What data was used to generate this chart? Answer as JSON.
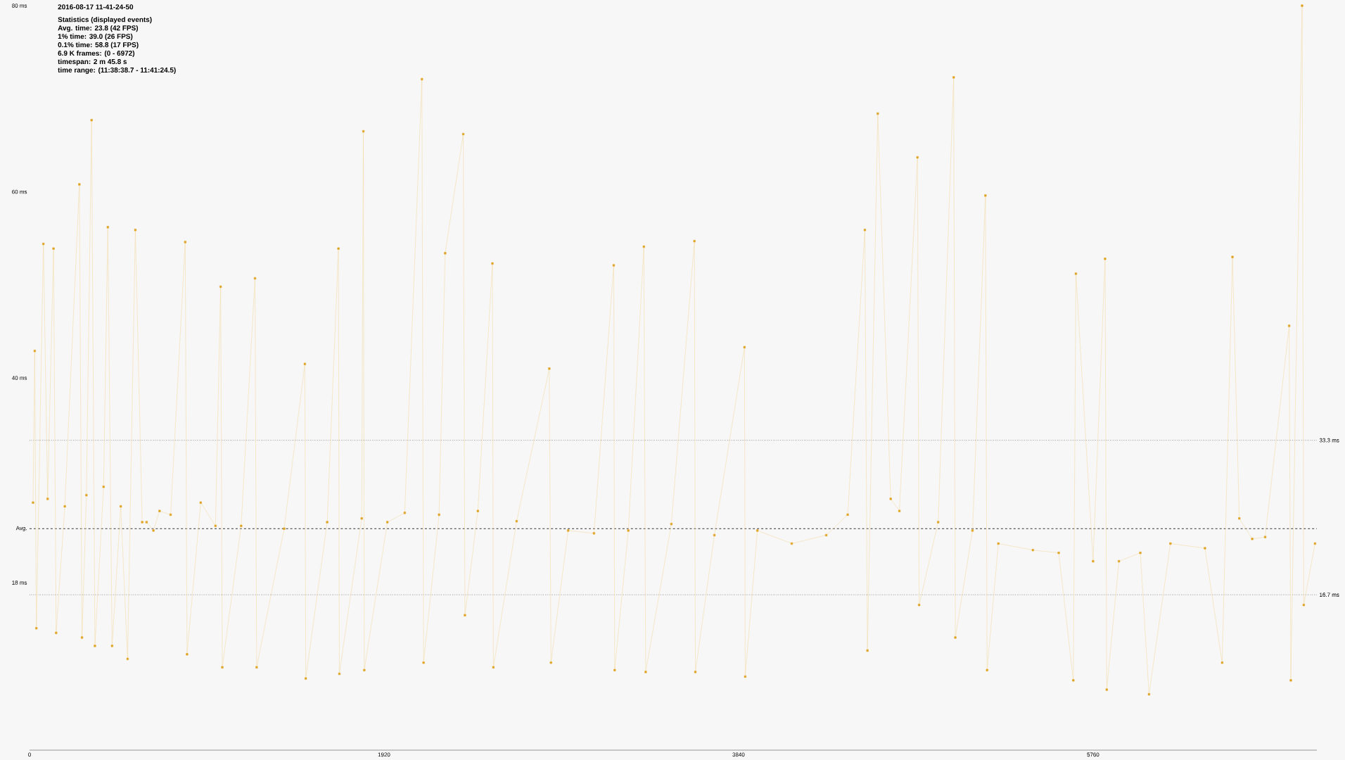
{
  "chart_data": {
    "type": "line",
    "subtitle": "2016-08-17 11-41-24-50",
    "annotations": [
      "Statistics (displayed events)",
      "Avg. time: 23.8 (42 FPS)",
      "1% time: 39.0 (26 FPS)",
      "0.1% time: 58.8 (17 FPS)",
      "6.9 K frames: (0 - 6972)",
      "timespan: 2 m 45.8 s",
      "time range: (11:38:38.7 - 11:41:24.5)"
    ],
    "color": "#e0a526",
    "marker": "square",
    "x": [
      19,
      28,
      37,
      75,
      98,
      130,
      144,
      191,
      270,
      284,
      308,
      336,
      354,
      401,
      424,
      447,
      494,
      531,
      573,
      610,
      634,
      671,
      704,
      764,
      843,
      853,
      927,
      1007,
      1035,
      1044,
      1146,
      1221,
      1230,
      1379,
      1491,
      1496,
      1612,
      1673,
      1678,
      1799,
      1808,
      1813,
      1938,
      2032,
      2125,
      2134,
      2218,
      2251,
      2349,
      2358,
      2428,
      2507,
      2512,
      2638,
      2815,
      2824,
      2917,
      3057,
      3164,
      3169,
      3243,
      3327,
      3337,
      3476,
      3601,
      3606,
      3709,
      3872,
      3876,
      3942,
      4128,
      4315,
      4431,
      4524,
      4538,
      4594,
      4664,
      4711,
      4809,
      4818,
      4921,
      5005,
      5014,
      5107,
      5177,
      5186,
      5247,
      5434,
      5574,
      5653,
      5667,
      5760,
      5825,
      5834,
      5900,
      6016,
      6063,
      6179,
      6366,
      6459,
      6515,
      6552,
      6622,
      6692,
      6822,
      6831,
      6892,
      6901,
      6962
    ],
    "values": [
      26.6,
      42.9,
      13.1,
      54.4,
      27.0,
      53.9,
      12.6,
      26.2,
      60.8,
      12.1,
      27.4,
      67.7,
      11.2,
      28.3,
      56.2,
      11.2,
      26.2,
      9.8,
      55.9,
      24.5,
      24.5,
      23.6,
      25.7,
      25.3,
      54.6,
      10.3,
      26.6,
      24.1,
      49.8,
      8.9,
      24.1,
      50.7,
      8.9,
      23.8,
      41.5,
      7.7,
      24.5,
      53.9,
      8.2,
      24.9,
      66.5,
      8.6,
      24.5,
      25.5,
      72.1,
      9.4,
      25.3,
      53.4,
      66.2,
      14.5,
      25.7,
      52.3,
      8.9,
      24.6,
      41.0,
      9.4,
      23.6,
      23.3,
      52.1,
      8.6,
      23.6,
      54.1,
      8.4,
      24.3,
      54.7,
      8.4,
      23.1,
      43.3,
      7.9,
      23.6,
      22.2,
      23.1,
      25.3,
      55.9,
      10.7,
      68.4,
      27.0,
      25.7,
      63.7,
      15.6,
      24.5,
      72.3,
      12.1,
      23.6,
      59.6,
      8.6,
      22.2,
      21.5,
      21.2,
      7.5,
      51.2,
      20.3,
      52.8,
      6.5,
      20.3,
      21.2,
      6.0,
      22.2,
      21.7,
      9.4,
      53.0,
      24.9,
      22.7,
      22.9,
      45.6,
      7.5,
      80,
      15.6,
      22.2
    ],
    "xlim": [
      0,
      6972
    ],
    "xticks": [
      0,
      1920,
      3840,
      5760
    ],
    "ylim": [
      0,
      80
    ],
    "yticks": [
      {
        "value": 18,
        "label": "18 ms"
      },
      {
        "value": 40,
        "label": "40 ms"
      },
      {
        "value": 60,
        "label": "60 ms"
      },
      {
        "value": 80,
        "label": "80 ms"
      }
    ],
    "ref_lines": [
      {
        "axis": "y",
        "value": 33.3,
        "label": "33.3 ms",
        "line_style": "dotted"
      },
      {
        "axis": "y",
        "value": 23.8,
        "label": "Avg.",
        "line_style": "dashed"
      },
      {
        "axis": "y",
        "value": 16.7,
        "label": "16.7 ms",
        "line_style": "dotted"
      }
    ]
  }
}
